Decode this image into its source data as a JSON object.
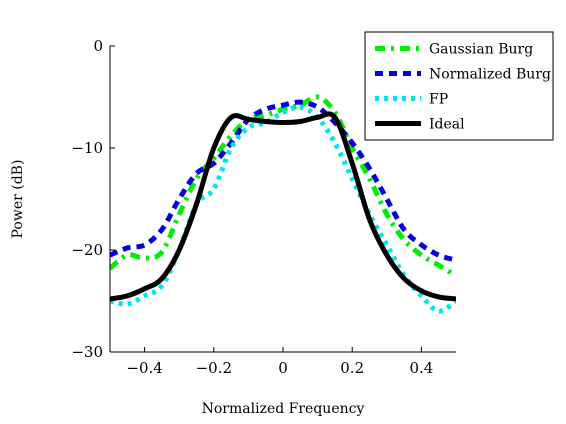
{
  "chart_data": {
    "type": "line",
    "title": "",
    "xlabel": "Normalized Frequency",
    "ylabel": "Power (dB)",
    "xlim": [
      -0.5,
      0.5
    ],
    "ylim": [
      -30,
      0
    ],
    "x_ticks": [
      -0.4,
      -0.2,
      0,
      0.2,
      0.4
    ],
    "x_tick_labels": [
      "−0.4",
      "−0.2",
      "0",
      "0.2",
      "0.4"
    ],
    "y_ticks": [
      -30,
      -20,
      -10,
      0
    ],
    "y_tick_labels": [
      "−30",
      "−20",
      "−10",
      "0"
    ],
    "grid": false,
    "legend_position": "top-right",
    "x": [
      -0.5,
      -0.45,
      -0.4,
      -0.35,
      -0.3,
      -0.25,
      -0.2,
      -0.15,
      -0.1,
      -0.05,
      0,
      0.05,
      0.1,
      0.15,
      0.2,
      0.25,
      0.3,
      0.35,
      0.4,
      0.45,
      0.5
    ],
    "series": [
      {
        "name": "Gaussian Burg",
        "color": "#00ee00",
        "style": "dashdot",
        "values": [
          -21.8,
          -20.5,
          -20.8,
          -20.2,
          -16.5,
          -13.0,
          -11.0,
          -8.8,
          -7.2,
          -6.8,
          -6.2,
          -5.8,
          -5.0,
          -6.5,
          -10.0,
          -13.0,
          -16.5,
          -19.0,
          -20.5,
          -21.5,
          -22.5
        ]
      },
      {
        "name": "Normalized Burg",
        "color": "#0000dd",
        "style": "dashed",
        "values": [
          -20.5,
          -19.8,
          -19.5,
          -18.0,
          -15.0,
          -12.5,
          -11.5,
          -9.5,
          -7.2,
          -6.2,
          -5.8,
          -5.5,
          -6.0,
          -7.5,
          -9.5,
          -12.0,
          -15.0,
          -18.0,
          -19.5,
          -20.5,
          -21.0
        ]
      },
      {
        "name": "FP",
        "color": "#00e5ee",
        "style": "dotted",
        "values": [
          -25.0,
          -25.3,
          -24.5,
          -23.5,
          -20.0,
          -15.5,
          -14.0,
          -10.0,
          -8.0,
          -7.5,
          -6.5,
          -6.0,
          -7.0,
          -9.5,
          -13.0,
          -16.5,
          -19.5,
          -22.5,
          -24.5,
          -26.0,
          -25.0
        ]
      },
      {
        "name": "Ideal",
        "color": "#000000",
        "style": "solid",
        "values": [
          -24.8,
          -24.5,
          -23.8,
          -22.8,
          -20.0,
          -15.5,
          -10.0,
          -7.0,
          -7.2,
          -7.4,
          -7.5,
          -7.4,
          -7.0,
          -7.0,
          -11.5,
          -17.0,
          -20.5,
          -22.8,
          -24.0,
          -24.6,
          -24.8
        ]
      }
    ]
  }
}
